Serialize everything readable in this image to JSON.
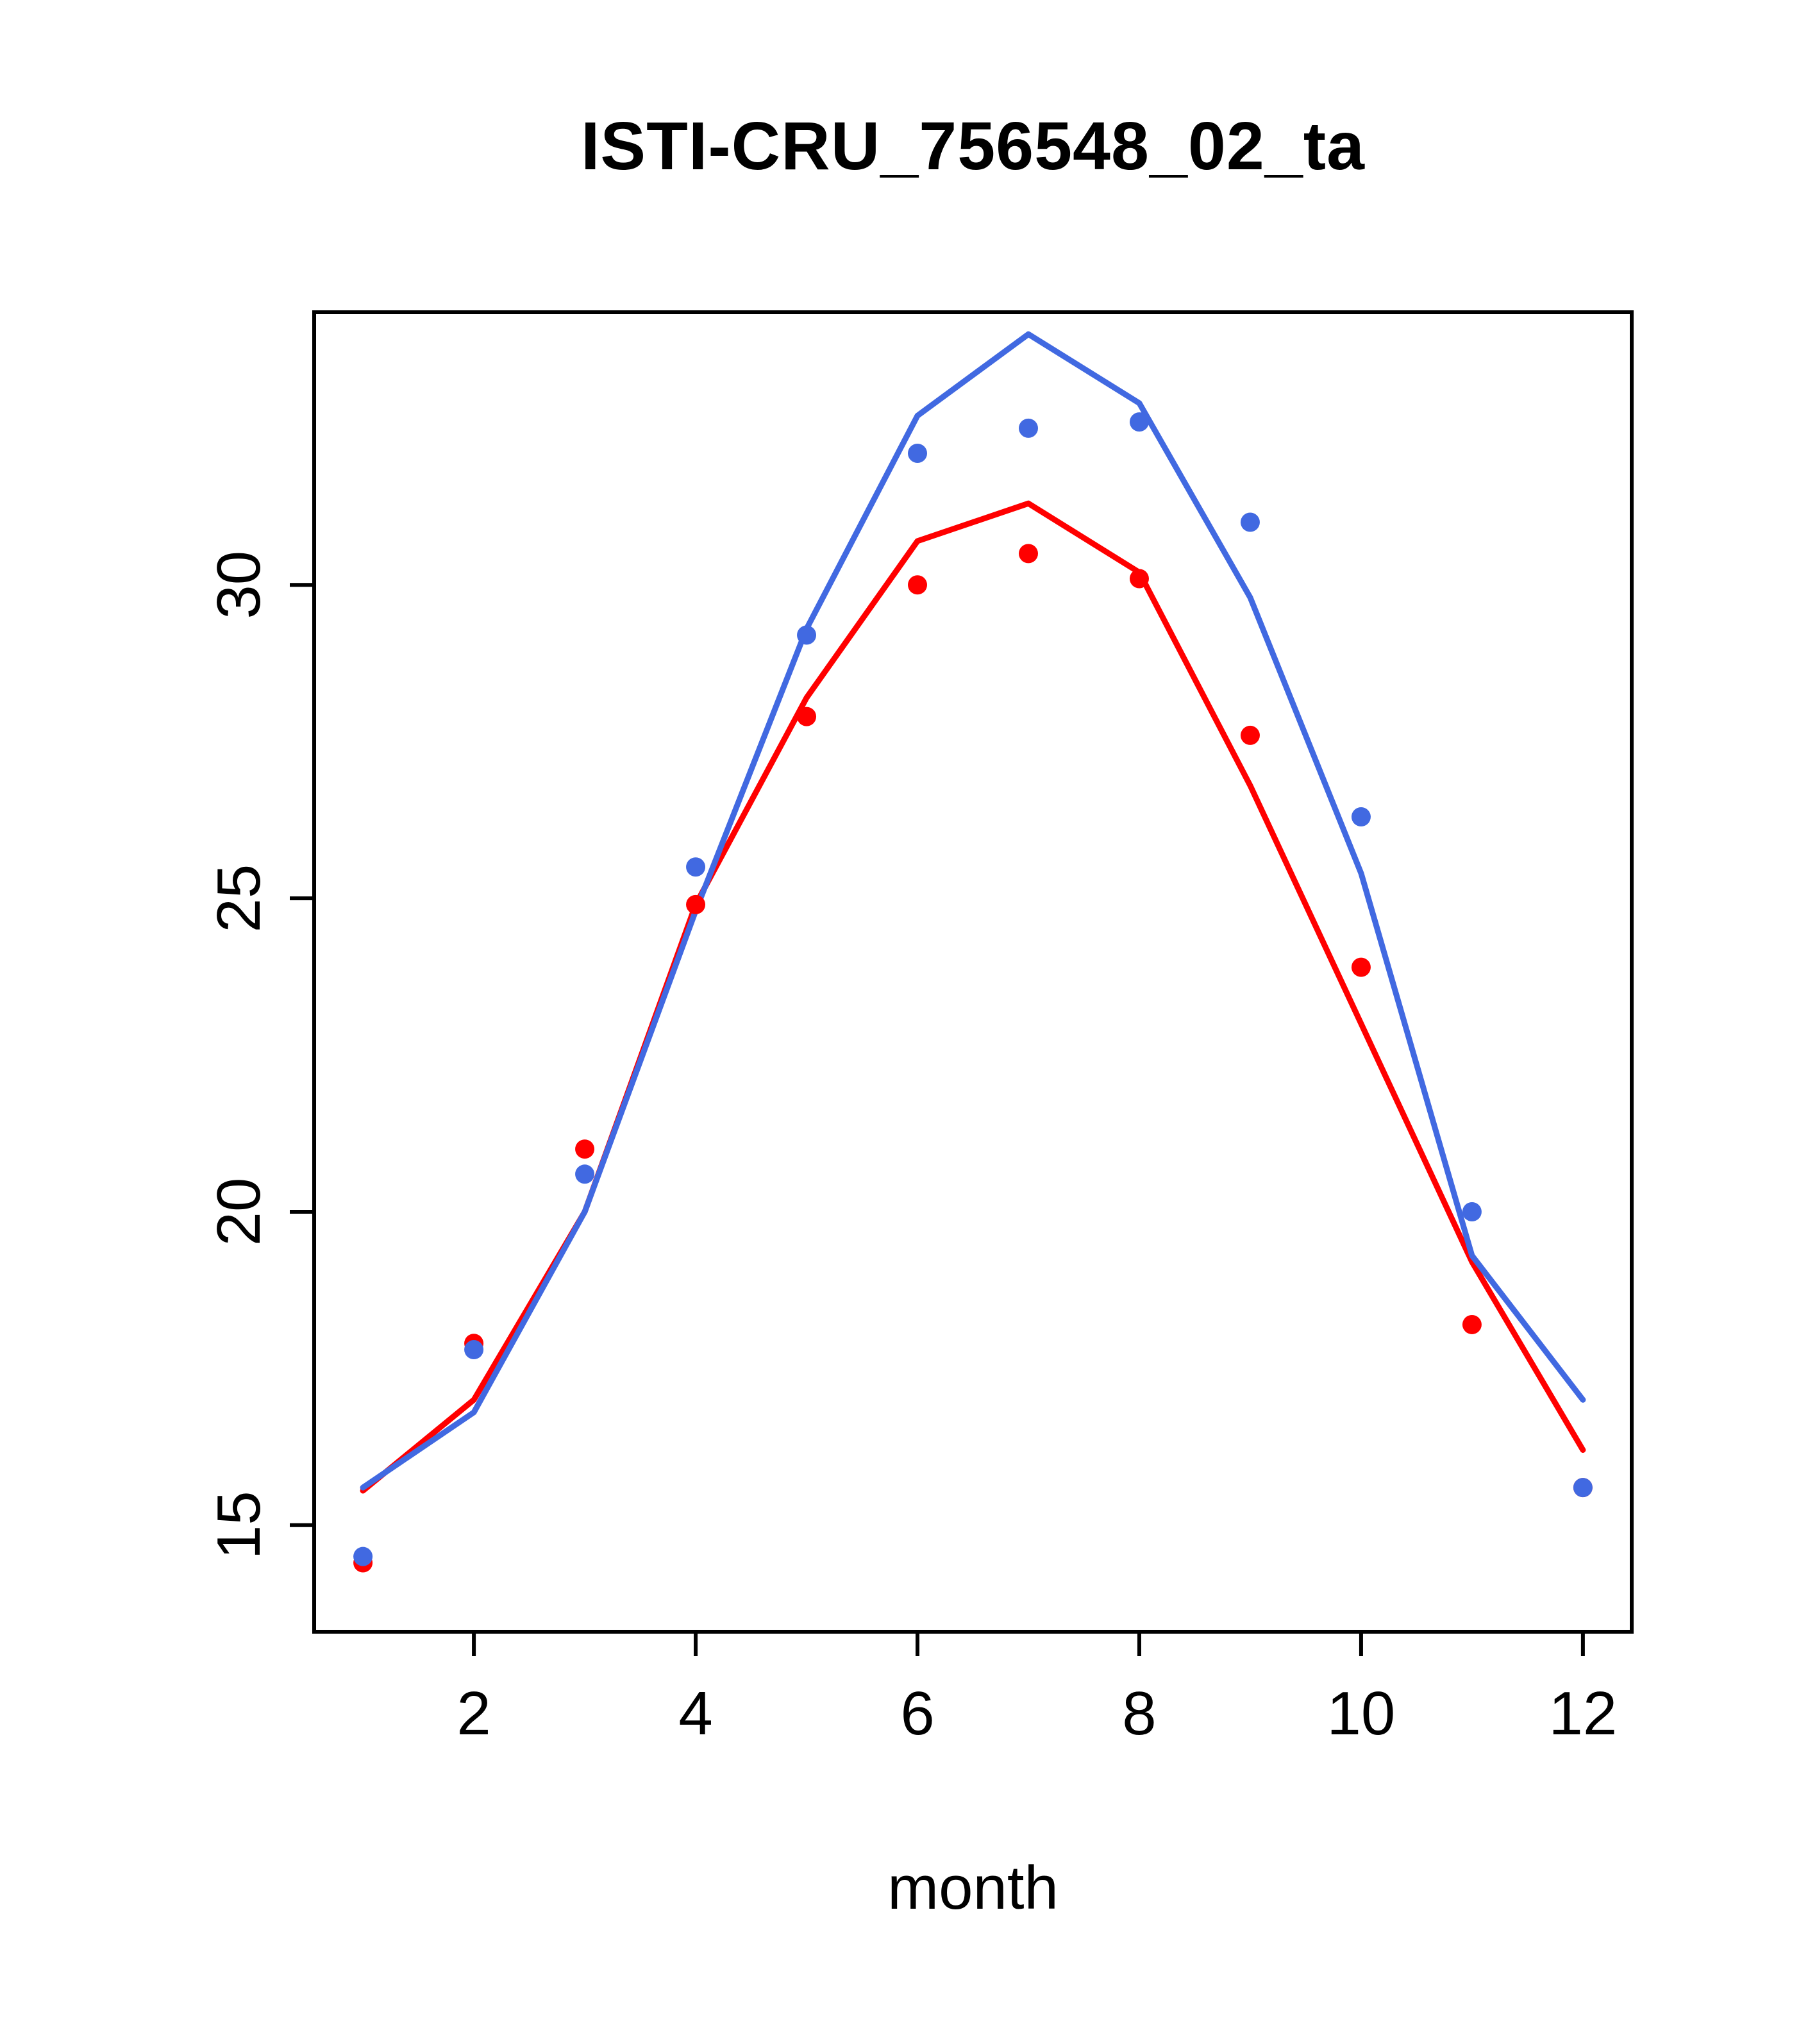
{
  "chart_data": {
    "type": "line",
    "title": "ISTI-CRU_756548_02_ta",
    "xlabel": "month",
    "ylabel": "",
    "x": [
      1,
      2,
      3,
      4,
      5,
      6,
      7,
      8,
      9,
      10,
      11,
      12
    ],
    "xticks": [
      2,
      4,
      6,
      8,
      10,
      12
    ],
    "yticks": [
      15,
      20,
      25,
      30
    ],
    "xlim": [
      0.56,
      12.44
    ],
    "ylim": [
      13.3,
      34.35
    ],
    "grid": "off",
    "legend": "none",
    "colors": {
      "blue": "#4169E1",
      "red": "#FF0000",
      "axis": "#000000",
      "background": "#FFFFFF"
    },
    "series": [
      {
        "name": "red-line",
        "style": "line",
        "color": "#FF0000",
        "values": [
          15.55,
          17.0,
          20.0,
          24.9,
          28.2,
          30.7,
          31.3,
          30.2,
          26.8,
          23.0,
          19.2,
          16.2
        ]
      },
      {
        "name": "blue-line",
        "style": "line",
        "color": "#4169E1",
        "values": [
          15.6,
          16.8,
          20.0,
          24.8,
          29.3,
          32.7,
          34.0,
          32.9,
          29.8,
          25.4,
          19.3,
          17.0
        ]
      },
      {
        "name": "red-points",
        "style": "points",
        "color": "#FF0000",
        "values": [
          14.4,
          17.9,
          21.0,
          24.9,
          27.9,
          30.0,
          30.5,
          30.1,
          27.6,
          23.9,
          18.2,
          15.6
        ]
      },
      {
        "name": "blue-points",
        "style": "points",
        "color": "#4169E1",
        "values": [
          14.5,
          17.8,
          20.6,
          25.5,
          29.2,
          32.1,
          32.5,
          32.6,
          31.0,
          26.3,
          20.0,
          15.6
        ]
      }
    ]
  }
}
